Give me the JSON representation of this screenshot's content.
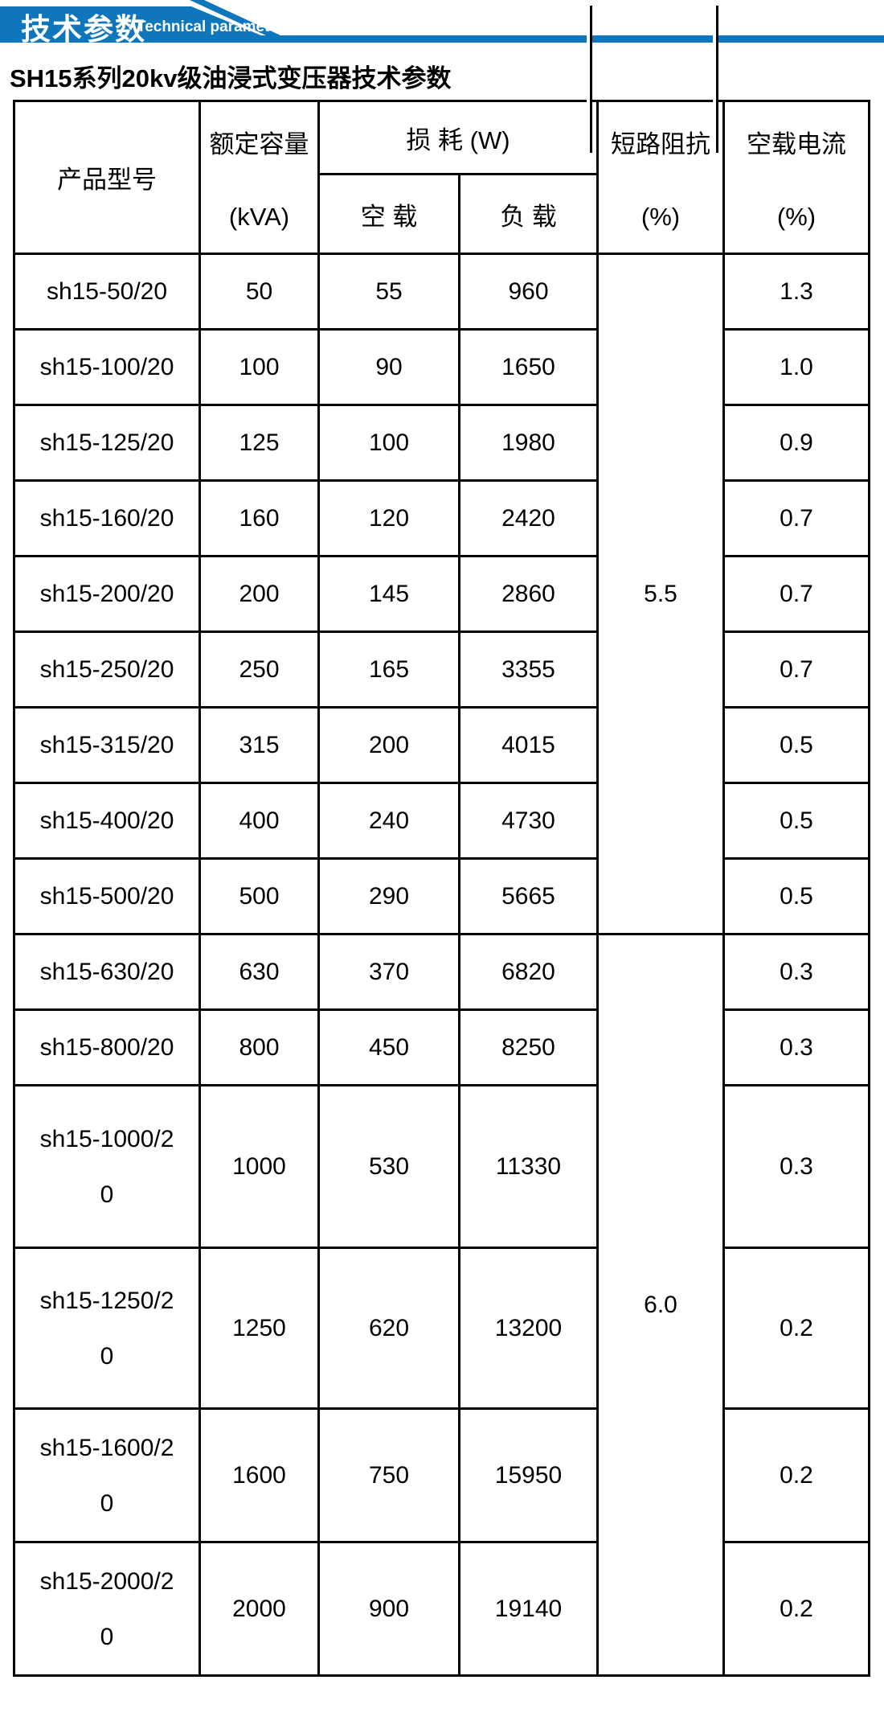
{
  "accent_color": "#0f76bb",
  "banner": {
    "title_cn": "技术参数",
    "title_en": "Technical parameter"
  },
  "page_title": "SH15系列20kv级油浸式变压器技术参数",
  "table": {
    "headers": {
      "model": "产品型号",
      "capacity_line1": "额定容量",
      "capacity_line2": "(kVA)",
      "loss_group": "损 耗 (W)",
      "no_load": "空 载",
      "load": "负 载",
      "impedance_line1": "短路阻抗",
      "impedance_line2": "(%)",
      "current_line1": "空载电流",
      "current_line2": "(%)"
    },
    "rows": [
      {
        "model": "sh15-50/20",
        "kva": "50",
        "no_load": "55",
        "load": "960",
        "current": "1.3"
      },
      {
        "model": "sh15-100/20",
        "kva": "100",
        "no_load": "90",
        "load": "1650",
        "current": "1.0"
      },
      {
        "model": "sh15-125/20",
        "kva": "125",
        "no_load": "100",
        "load": "1980",
        "current": "0.9"
      },
      {
        "model": "sh15-160/20",
        "kva": "160",
        "no_load": "120",
        "load": "2420",
        "current": "0.7"
      },
      {
        "model": "sh15-200/20",
        "kva": "200",
        "no_load": "145",
        "load": "2860",
        "current": "0.7"
      },
      {
        "model": "sh15-250/20",
        "kva": "250",
        "no_load": "165",
        "load": "3355",
        "current": "0.7"
      },
      {
        "model": "sh15-315/20",
        "kva": "315",
        "no_load": "200",
        "load": "4015",
        "current": "0.5"
      },
      {
        "model": "sh15-400/20",
        "kva": "400",
        "no_load": "240",
        "load": "4730",
        "current": "0.5"
      },
      {
        "model": "sh15-500/20",
        "kva": "500",
        "no_load": "290",
        "load": "5665",
        "current": "0.5"
      },
      {
        "model": "sh15-630/20",
        "kva": "630",
        "no_load": "370",
        "load": "6820",
        "current": "0.3"
      },
      {
        "model": "sh15-800/20",
        "kva": "800",
        "no_load": "450",
        "load": "8250",
        "current": "0.3"
      },
      {
        "model": "sh15-1000/2\n0",
        "kva": "1000",
        "no_load": "530",
        "load": "11330",
        "current": "0.3"
      },
      {
        "model": "sh15-1250/2\n0",
        "kva": "1250",
        "no_load": "620",
        "load": "13200",
        "current": "0.2"
      },
      {
        "model": "sh15-1600/2\n0",
        "kva": "1600",
        "no_load": "750",
        "load": "15950",
        "current": "0.2"
      },
      {
        "model": "sh15-2000/2\n0",
        "kva": "2000",
        "no_load": "900",
        "load": "19140",
        "current": "0.2"
      }
    ],
    "impedance_cells": [
      {
        "value": "5.5",
        "span": 9
      },
      {
        "value": "6.0",
        "span": 6
      }
    ]
  }
}
